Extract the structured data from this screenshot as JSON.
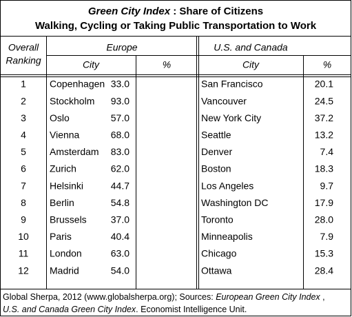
{
  "title": {
    "emphasis": "Green City Index",
    "rest": " : Share of Citizens",
    "line2": "Walking, Cycling or Taking Public Transportation to Work"
  },
  "header": {
    "ranking": [
      "Overall",
      "Ranking"
    ],
    "europe": {
      "label": "Europe",
      "city": "City",
      "percent": "%"
    },
    "us": {
      "label": "U.S. and Canada",
      "city": "City",
      "percent": "%"
    }
  },
  "rows": [
    [
      "1",
      "Copenhagen",
      "33.0",
      "San Francisco",
      "20.1"
    ],
    [
      "2",
      "Stockholm",
      "93.0",
      "Vancouver",
      "24.5"
    ],
    [
      "3",
      "Oslo",
      "57.0",
      "New York City",
      "37.2"
    ],
    [
      "4",
      "Vienna",
      "68.0",
      "Seattle",
      "13.2"
    ],
    [
      "5",
      "Amsterdam",
      "83.0",
      "Denver",
      "7.4"
    ],
    [
      "6",
      "Zurich",
      "62.0",
      "Boston",
      "18.3"
    ],
    [
      "7",
      "Helsinki",
      "44.7",
      "Los Angeles",
      "9.7"
    ],
    [
      "8",
      "Berlin",
      "54.8",
      "Washington DC",
      "17.9"
    ],
    [
      "9",
      "Brussels",
      "37.0",
      "Toronto",
      "28.0"
    ],
    [
      "10",
      "Paris",
      "40.4",
      "Minneapolis",
      "7.9"
    ],
    [
      "11",
      "London",
      "63.0",
      "Chicago",
      "15.3"
    ],
    [
      "12",
      "Madrid",
      "54.0",
      "Ottawa",
      "28.4"
    ]
  ],
  "footer": {
    "line1": [
      "Global Sherpa, 2012 (www.globalsherpa.org); Sources: ",
      "European Green City Index",
      " ,"
    ],
    "line2": [
      "U.S. and Canada Green City Index",
      ".  Economist Intelligence Unit."
    ]
  }
}
